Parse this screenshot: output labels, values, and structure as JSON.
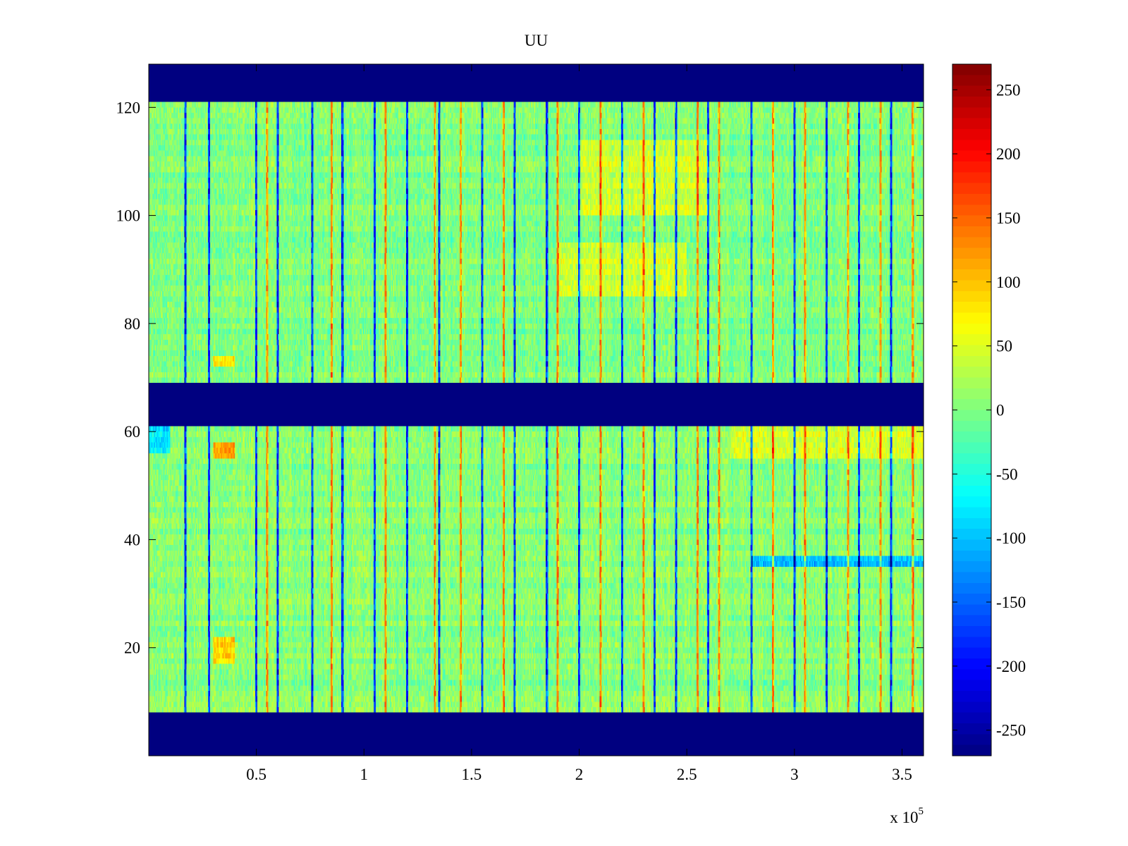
{
  "chart_data": {
    "type": "heatmap",
    "title": "UU",
    "xlabel": "",
    "ylabel": "",
    "x_exponent_label": "x 10",
    "x_exponent_power": "5",
    "xlim": [
      0,
      3.6
    ],
    "ylim": [
      0,
      128
    ],
    "x_ticks": [
      0.5,
      1,
      1.5,
      2,
      2.5,
      3,
      3.5
    ],
    "x_tick_labels": [
      "0.5",
      "1",
      "1.5",
      "2",
      "2.5",
      "3",
      "3.5"
    ],
    "y_ticks": [
      20,
      40,
      60,
      80,
      100,
      120
    ],
    "y_tick_labels": [
      "20",
      "40",
      "60",
      "80",
      "100",
      "120"
    ],
    "colormap": "jet",
    "clim": [
      -270,
      270
    ],
    "colorbar": {
      "ticks": [
        250,
        200,
        150,
        100,
        50,
        0,
        -50,
        -100,
        -150,
        -200,
        -250
      ],
      "tick_labels": [
        "250",
        "200",
        "150",
        "100",
        "50",
        "0",
        "-50",
        "-100",
        "-150",
        "-200",
        "-250"
      ]
    },
    "grid": false,
    "fill_value": -270,
    "background_level": -10,
    "blank_row_bands": [
      [
        0,
        8
      ],
      [
        61,
        69
      ],
      [
        121,
        128
      ]
    ],
    "columns": 720,
    "column_step": 0.005,
    "row_step": 1,
    "band_levels": [
      {
        "rows": [
          8,
          61
        ],
        "level": 5
      },
      {
        "rows": [
          69,
          121
        ],
        "level": 0
      },
      {
        "rows": [
          85,
          95
        ],
        "x_range": [
          1.9,
          2.5
        ],
        "level": 40
      },
      {
        "rows": [
          100,
          114
        ],
        "x_range": [
          2.0,
          2.6
        ],
        "level": 40
      },
      {
        "rows": [
          55,
          61
        ],
        "x_range": [
          2.7,
          3.6
        ],
        "level": 45
      },
      {
        "rows": [
          35,
          37
        ],
        "x_range": [
          2.8,
          3.6
        ],
        "level": -100
      },
      {
        "rows": [
          56,
          61
        ],
        "x_range": [
          0.0,
          0.1
        ],
        "level": -80
      },
      {
        "rows": [
          55,
          58
        ],
        "x_range": [
          0.3,
          0.4
        ],
        "level": 110
      },
      {
        "rows": [
          17,
          22
        ],
        "x_range": [
          0.3,
          0.4
        ],
        "level": 90
      },
      {
        "rows": [
          72,
          74
        ],
        "x_range": [
          0.3,
          0.4
        ],
        "level": 80
      }
    ],
    "strong_negative_columns": [
      0.17,
      0.28,
      0.5,
      0.6,
      0.76,
      0.9,
      1.05,
      1.2,
      1.35,
      1.55,
      1.7,
      1.85,
      2.0,
      2.2,
      2.35,
      2.45,
      2.6,
      2.8,
      3.0,
      3.15,
      3.3,
      3.45
    ],
    "strong_positive_columns": [
      0.55,
      0.85,
      1.1,
      1.33,
      1.45,
      1.65,
      1.9,
      2.1,
      2.3,
      2.55,
      2.65,
      2.9,
      3.05,
      3.25,
      3.4,
      3.55
    ]
  }
}
